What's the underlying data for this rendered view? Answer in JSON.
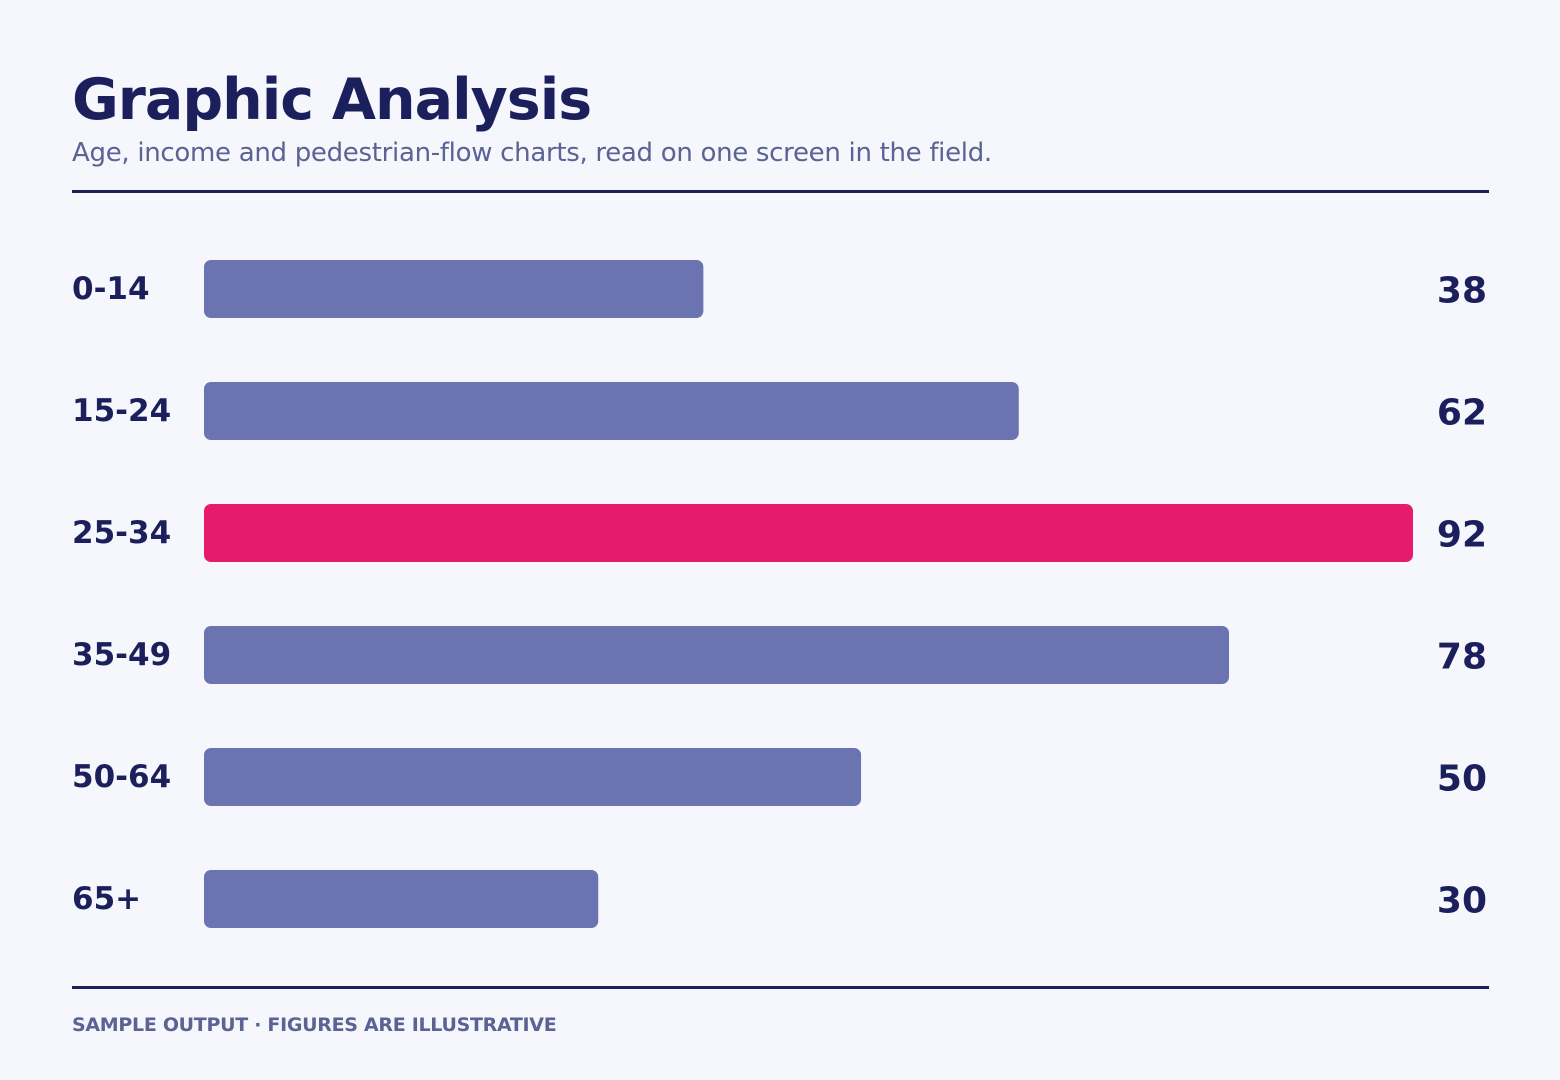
{
  "header": {
    "title": "Graphic Analysis",
    "subtitle": "Age, income and pedestrian-flow charts, read on one screen in the field."
  },
  "footer": {
    "note": "SAMPLE OUTPUT · FIGURES ARE ILLUSTRATIVE"
  },
  "colors": {
    "bar": "#6b74b0",
    "highlight": "#e61b6e",
    "text": "#1b1f5c"
  },
  "chart_data": {
    "type": "bar",
    "orientation": "horizontal",
    "categories": [
      "0-14",
      "15-24",
      "25-34",
      "35-49",
      "50-64",
      "65+"
    ],
    "values": [
      38,
      62,
      92,
      78,
      50,
      30
    ],
    "highlight": "25-34",
    "title": "",
    "xlabel": "",
    "ylabel": "",
    "xlim": [
      0,
      92
    ],
    "grid": false,
    "legend": "none"
  }
}
